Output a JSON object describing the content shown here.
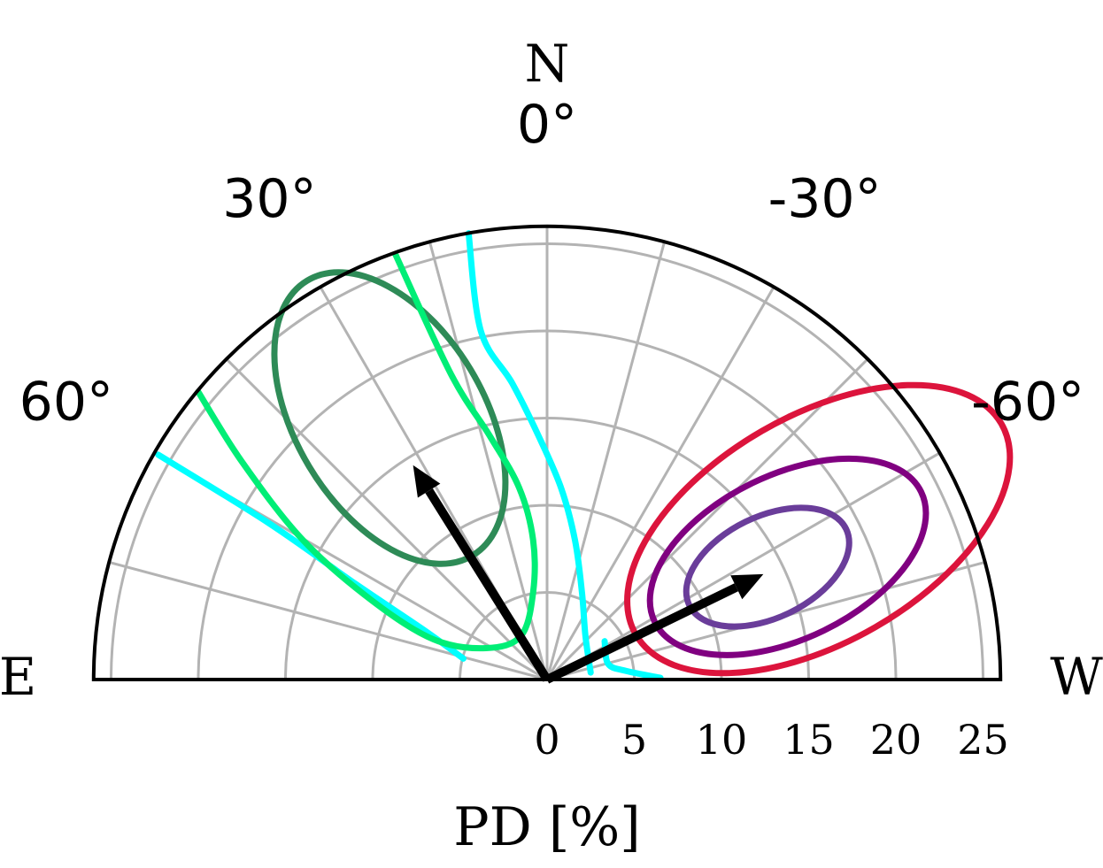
{
  "chart_data": {
    "type": "polar-half",
    "title": "",
    "xlabel": "PD [%]",
    "cardinal_labels": {
      "north": "N",
      "east": "E",
      "west": "W"
    },
    "angle_ticks": [
      {
        "angle": 60,
        "label": "60°"
      },
      {
        "angle": 30,
        "label": "30°"
      },
      {
        "angle": 0,
        "label": "0°"
      },
      {
        "angle": -30,
        "label": "-30°"
      },
      {
        "angle": -60,
        "label": "-60°"
      }
    ],
    "angle_grid_deg": [
      -75,
      -60,
      -45,
      -30,
      -15,
      0,
      15,
      30,
      45,
      60,
      75
    ],
    "radial_ticks": [
      0,
      5,
      10,
      15,
      20,
      25
    ],
    "radial_grid": [
      5,
      10,
      15,
      20,
      25
    ],
    "rlim": [
      0,
      26
    ],
    "angle_range": [
      -90,
      90
    ],
    "grid": true,
    "vectors": [
      {
        "name": "",
        "pd": 14.5,
        "angle_deg": 32,
        "color": "#000000"
      },
      {
        "name": "",
        "pd": 13.8,
        "angle_deg": -64,
        "color": "#000000"
      }
    ],
    "ellipses": [
      {
        "color": "#2e8b57",
        "center": {
          "pd": 17.5,
          "angle_deg": 31
        },
        "semi_major": 9.2,
        "semi_minor": 5.4,
        "orient_deg": 121
      },
      {
        "color": "#6a3d9a",
        "center": {
          "pd": 14.2,
          "angle_deg": -63
        },
        "semi_major": 5.0,
        "semi_minor": 2.9,
        "orient_deg": 26
      },
      {
        "color": "#800080",
        "center": {
          "pd": 15.5,
          "angle_deg": -63
        },
        "semi_major": 8.5,
        "semi_minor": 4.7,
        "orient_deg": 26
      },
      {
        "color": "#dc143c",
        "center": {
          "pd": 17.8,
          "angle_deg": -61
        },
        "semi_major": 12.1,
        "semi_minor": 6.5,
        "orient_deg": 30
      }
    ],
    "open_contours": [
      {
        "color": "#00ffff",
        "points": [
          [
            -22.3,
            12.9
          ],
          [
            -16,
            9
          ],
          [
            -11,
            5.5
          ],
          [
            -7,
            2.8
          ],
          [
            -4.8,
            1.2
          ]
        ]
      },
      {
        "color": "#00ffff",
        "points": [
          [
            2.5,
            0.4
          ],
          [
            2.2,
            2.5
          ],
          [
            2.0,
            5
          ],
          [
            1.6,
            8
          ],
          [
            0.8,
            11
          ],
          [
            -0.5,
            14
          ],
          [
            -2,
            17
          ],
          [
            -3.8,
            20
          ],
          [
            -4.5,
            25.6
          ]
        ]
      },
      {
        "color": "#00ee76",
        "points": [
          [
            -20,
            16.5
          ],
          [
            -17.5,
            12.5
          ],
          [
            -14,
            8
          ],
          [
            -10,
            4.5
          ],
          [
            -6.5,
            2.3
          ],
          [
            -3.5,
            1.8
          ],
          [
            -1.5,
            2.5
          ],
          [
            -0.8,
            5
          ],
          [
            -0.8,
            8
          ],
          [
            -1.6,
            11
          ],
          [
            -3.3,
            14
          ],
          [
            -5.5,
            17.5
          ],
          [
            -8.7,
            24.4
          ]
        ]
      },
      {
        "color": "#00ffff",
        "points": [
          [
            6.5,
            0.1
          ],
          [
            4.5,
            0.5
          ],
          [
            3.5,
            0.9
          ],
          [
            3.3,
            2.2
          ]
        ]
      }
    ]
  }
}
